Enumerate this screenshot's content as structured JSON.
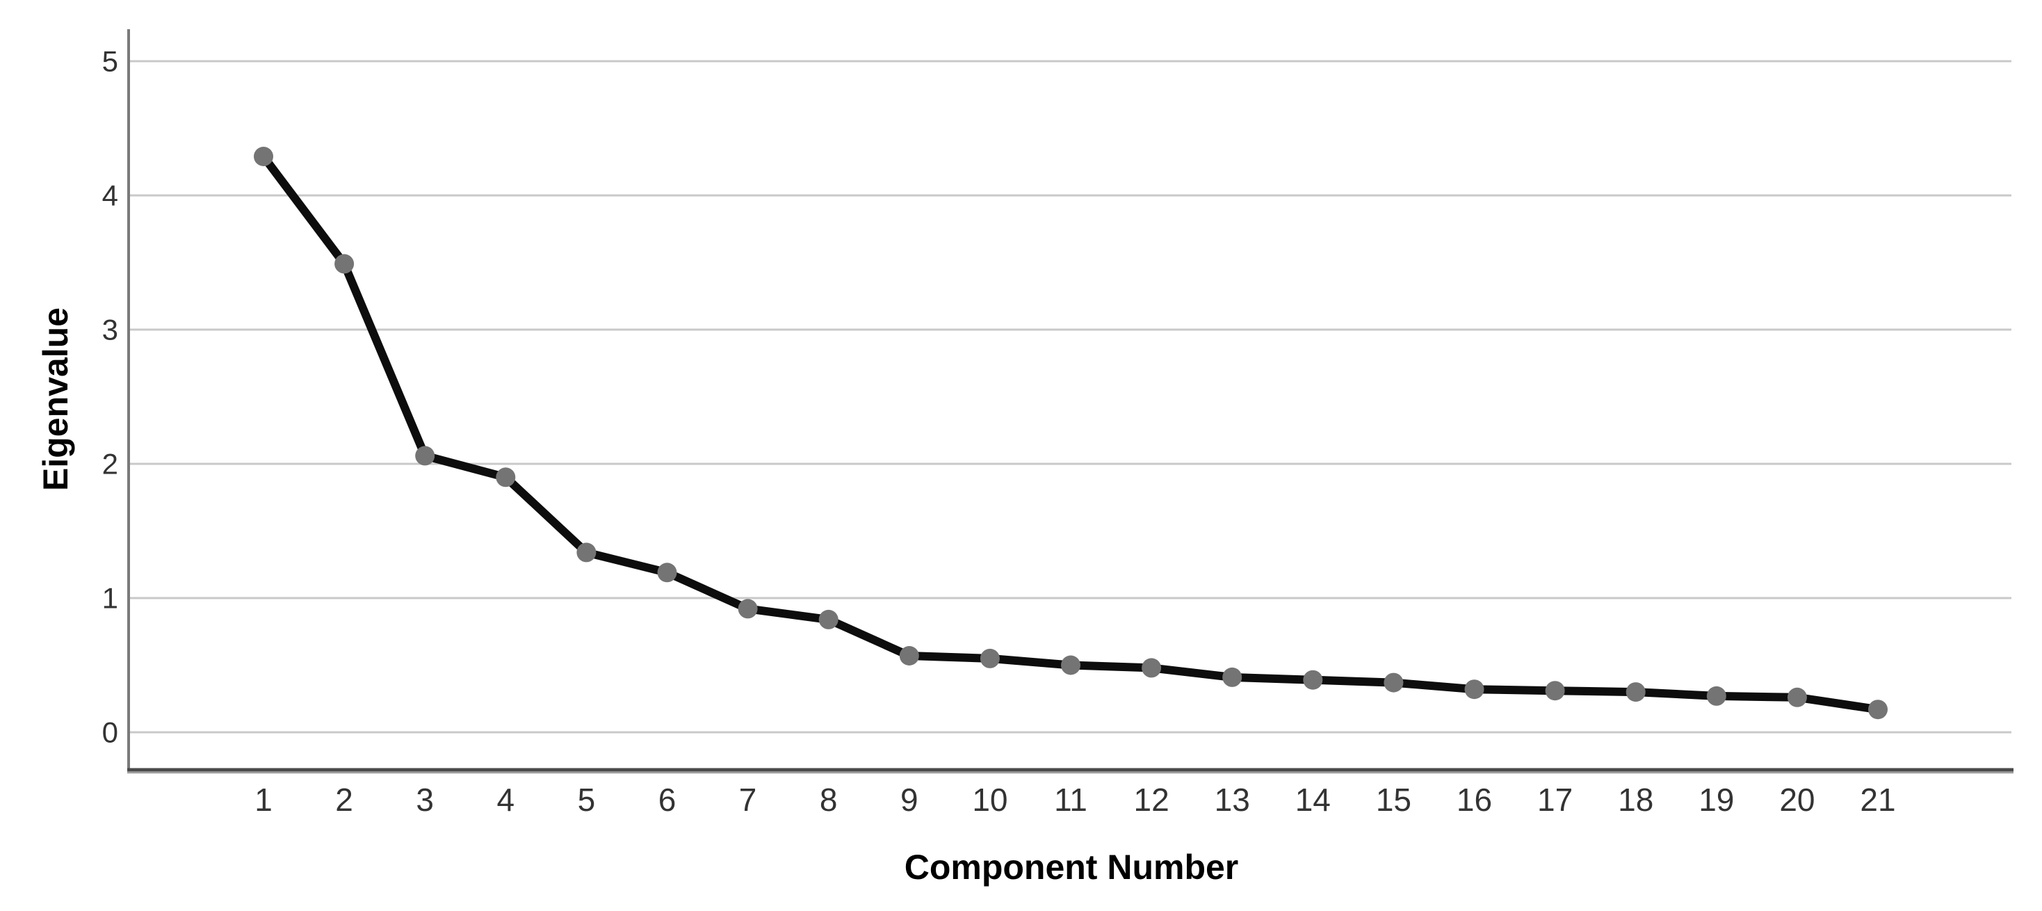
{
  "page": {
    "background": "#ffffff"
  },
  "chart_data": {
    "type": "line",
    "title": "",
    "xlabel": "Component Number",
    "ylabel": "Eigenvalue",
    "x": [
      1,
      2,
      3,
      4,
      5,
      6,
      7,
      8,
      9,
      10,
      11,
      12,
      13,
      14,
      15,
      16,
      17,
      18,
      19,
      20,
      21
    ],
    "values": [
      4.29,
      3.49,
      2.06,
      1.9,
      1.34,
      1.19,
      0.92,
      0.84,
      0.57,
      0.55,
      0.5,
      0.48,
      0.41,
      0.39,
      0.37,
      0.32,
      0.31,
      0.3,
      0.27,
      0.26,
      0.17
    ],
    "y_ticks": [
      0,
      1,
      2,
      3,
      4,
      5
    ],
    "ylim": [
      0,
      5.2
    ],
    "xlim": [
      1,
      21
    ],
    "grid": "horizontal-only",
    "legend_position": "none",
    "marker": "circle",
    "colors": {
      "line": "#0d0d0d",
      "marker": "#747474",
      "grid": "#c9c9c9",
      "y_axis": "#7a7a7a",
      "x_axis": "#4a4a4a",
      "x_axis_shadow": "#9e9e9e",
      "tick_text": "#333333",
      "axis_title_text": "#000000",
      "background": "#ffffff"
    }
  }
}
